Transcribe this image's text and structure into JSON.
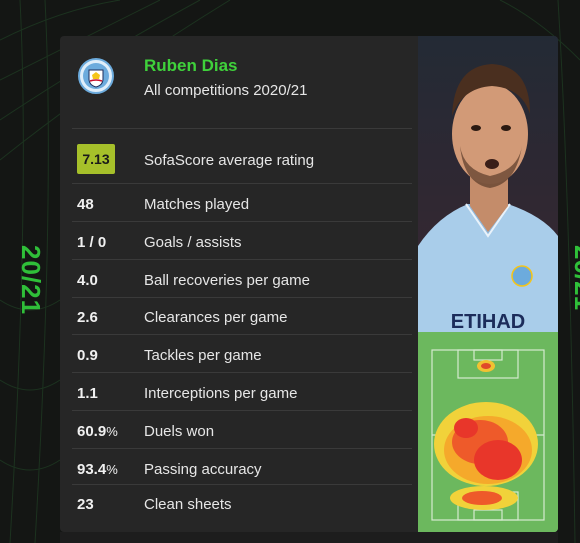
{
  "season": {
    "left": "20/21",
    "right": "20/21"
  },
  "player": {
    "name": "Ruben Dias",
    "competition": "All competitions 2020/21",
    "club_logo": "manchester-city-crest",
    "shirt_sponsor": "ETIHAD"
  },
  "rating": {
    "value": "7.13",
    "label": "SofaScore average rating",
    "badge_color": "#a6c02a"
  },
  "stats": [
    {
      "value": "48",
      "suffix": "",
      "label": "Matches played"
    },
    {
      "value": "1 / 0",
      "suffix": "",
      "label": "Goals / assists"
    },
    {
      "value": "4.0",
      "suffix": "",
      "label": "Ball recoveries per game"
    },
    {
      "value": "2.6",
      "suffix": "",
      "label": "Clearances per game"
    },
    {
      "value": "0.9",
      "suffix": "",
      "label": "Tackles per game"
    },
    {
      "value": "1.1",
      "suffix": "",
      "label": "Interceptions per game"
    },
    {
      "value": "60.9",
      "suffix": "%",
      "label": "Duels won"
    },
    {
      "value": "93.4",
      "suffix": "%",
      "label": "Passing accuracy"
    },
    {
      "value": "23",
      "suffix": "",
      "label": "Clean sheets"
    }
  ],
  "colors": {
    "accent_green": "#3fd13b",
    "season_green": "#2fbf39",
    "card_bg": "#262626",
    "pitch_green": "#6cb85e"
  }
}
